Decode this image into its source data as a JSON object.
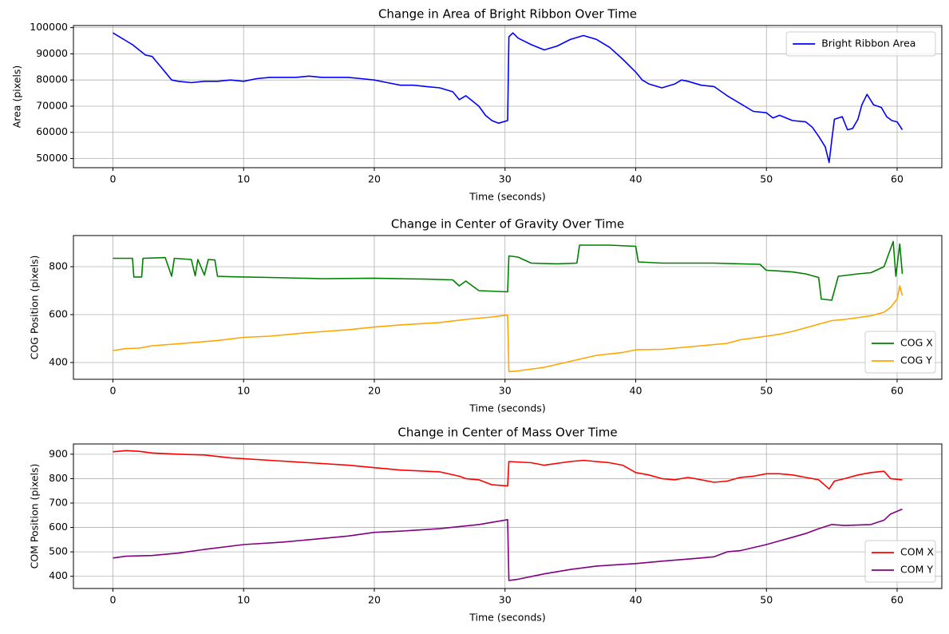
{
  "chart_data": [
    {
      "type": "line",
      "title": "Change in Area of Bright Ribbon Over Time",
      "xlabel": "Time (seconds)",
      "ylabel": "Area (pixels)",
      "xlim": [
        -3.02,
        63.42
      ],
      "ylim": [
        46500,
        100800
      ],
      "xticks": [
        0,
        10,
        20,
        30,
        40,
        50,
        60
      ],
      "yticks": [
        50000,
        60000,
        70000,
        80000,
        90000,
        100000
      ],
      "grid": true,
      "legend": "upper right",
      "series": [
        {
          "name": "Bright Ribbon Area",
          "color": "#0000ff",
          "x": [
            0,
            0.5,
            1,
            1.5,
            2,
            2.5,
            3,
            3.5,
            4,
            4.5,
            5,
            6,
            7,
            8,
            9,
            10,
            11,
            12,
            13,
            14,
            15,
            16,
            17,
            18,
            19,
            20,
            21,
            22,
            23,
            24,
            25,
            26,
            26.5,
            27,
            27.5,
            28,
            28.5,
            29,
            29.5,
            30.2,
            30.3,
            30.6,
            31,
            32,
            33,
            34,
            35,
            36,
            37,
            38,
            39,
            40,
            40.5,
            41,
            42,
            43,
            43.5,
            44,
            45,
            46,
            47,
            48,
            49,
            50,
            50.5,
            51,
            52,
            53,
            53.5,
            54,
            54.5,
            54.8,
            55,
            55.2,
            55.8,
            56.2,
            56.6,
            57,
            57.3,
            57.7,
            58.2,
            58.8,
            59.2,
            59.6,
            60,
            60.4
          ],
          "values": [
            98000,
            96500,
            95000,
            93500,
            91500,
            89500,
            89000,
            86000,
            83000,
            80000,
            79500,
            79000,
            79500,
            79500,
            80000,
            79500,
            80500,
            81000,
            81000,
            81000,
            81500,
            81000,
            81000,
            81000,
            80500,
            80000,
            79000,
            78000,
            78000,
            77500,
            77000,
            75500,
            72500,
            74000,
            72000,
            70000,
            66500,
            64500,
            63500,
            64500,
            96500,
            98000,
            96000,
            93500,
            91500,
            93000,
            95500,
            97000,
            95500,
            92500,
            88000,
            83000,
            80000,
            78500,
            77000,
            78500,
            80000,
            79500,
            78000,
            77500,
            74000,
            71000,
            68000,
            67500,
            65500,
            66500,
            64500,
            64000,
            62000,
            58500,
            54500,
            48500,
            57000,
            65000,
            66000,
            61000,
            61500,
            65000,
            70500,
            74500,
            70500,
            69500,
            66000,
            64500,
            64000,
            61000
          ]
        }
      ]
    },
    {
      "type": "line",
      "title": "Change in Center of Gravity Over Time",
      "xlabel": "Time (seconds)",
      "ylabel": "COG Position (pixels)",
      "xlim": [
        -3.02,
        63.42
      ],
      "ylim": [
        330,
        930
      ],
      "xticks": [
        0,
        10,
        20,
        30,
        40,
        50,
        60
      ],
      "yticks": [
        400,
        600,
        800
      ],
      "grid": true,
      "legend": "lower right",
      "series": [
        {
          "name": "COG X",
          "color": "#008000",
          "x": [
            0,
            1.5,
            1.6,
            2.2,
            2.3,
            4,
            4.5,
            4.7,
            6,
            6.3,
            6.5,
            7,
            7.3,
            7.8,
            8,
            9,
            12,
            16,
            20,
            24,
            26,
            26.5,
            27,
            28,
            30.2,
            30.3,
            31,
            32,
            34,
            35.5,
            35.7,
            38,
            40,
            40.2,
            42,
            46,
            48,
            49.5,
            50,
            51,
            52,
            53,
            54,
            54.2,
            55,
            55.5,
            57,
            58,
            59,
            59.7,
            59.9,
            60.2,
            60.4
          ],
          "values": [
            835,
            835,
            757,
            757,
            835,
            838,
            760,
            835,
            830,
            762,
            830,
            765,
            830,
            828,
            760,
            758,
            755,
            750,
            752,
            748,
            745,
            720,
            740,
            700,
            695,
            845,
            840,
            815,
            812,
            815,
            890,
            890,
            885,
            820,
            815,
            815,
            812,
            810,
            785,
            782,
            778,
            770,
            755,
            665,
            660,
            760,
            770,
            775,
            800,
            905,
            760,
            895,
            770
          ]
        },
        {
          "name": "COG Y",
          "color": "#ffa500",
          "x": [
            0,
            1,
            2,
            3,
            5,
            8,
            10,
            12,
            15,
            18,
            20,
            22,
            25,
            27,
            29,
            30.2,
            30.3,
            31,
            33,
            35,
            37,
            39,
            40,
            42,
            45,
            47,
            48,
            50,
            51,
            52,
            53,
            54,
            55,
            56,
            58,
            59,
            59.5,
            60,
            60.2,
            60.4
          ],
          "values": [
            450,
            458,
            460,
            470,
            478,
            492,
            505,
            510,
            525,
            537,
            548,
            557,
            567,
            580,
            590,
            598,
            362,
            365,
            380,
            405,
            430,
            442,
            453,
            455,
            470,
            480,
            495,
            510,
            518,
            530,
            545,
            560,
            575,
            580,
            595,
            610,
            630,
            665,
            720,
            680
          ]
        }
      ]
    },
    {
      "type": "line",
      "title": "Change in Center of Mass Over Time",
      "xlabel": "Time (seconds)",
      "ylabel": "COM Position (pixels)",
      "xlim": [
        -3.02,
        63.42
      ],
      "ylim": [
        350,
        942
      ],
      "xticks": [
        0,
        10,
        20,
        30,
        40,
        50,
        60
      ],
      "yticks": [
        400,
        500,
        600,
        700,
        800,
        900
      ],
      "grid": true,
      "legend": "lower right",
      "series": [
        {
          "name": "COM X",
          "color": "#ff0000",
          "x": [
            0,
            1,
            2,
            3,
            5,
            7,
            9,
            12,
            15,
            18,
            20,
            22,
            25,
            26.5,
            27,
            28,
            29,
            30.2,
            30.3,
            32,
            33,
            35,
            36,
            38,
            39,
            40,
            41,
            42,
            43,
            44,
            45,
            46,
            47,
            48,
            49,
            50,
            51,
            52,
            53,
            54,
            54.8,
            55.2,
            56,
            57,
            58,
            59,
            59.5,
            60.4
          ],
          "values": [
            910,
            915,
            912,
            905,
            900,
            897,
            885,
            875,
            865,
            855,
            845,
            835,
            828,
            810,
            800,
            795,
            775,
            770,
            870,
            865,
            855,
            870,
            875,
            865,
            855,
            825,
            815,
            800,
            795,
            805,
            795,
            785,
            790,
            805,
            810,
            820,
            820,
            815,
            805,
            795,
            758,
            790,
            800,
            815,
            825,
            830,
            800,
            795
          ]
        },
        {
          "name": "COM Y",
          "color": "#800080",
          "x": [
            0,
            1,
            3,
            5,
            7,
            10,
            13,
            15,
            18,
            20,
            22,
            25,
            28,
            30.2,
            30.3,
            31,
            33,
            35,
            37,
            40,
            42,
            45,
            46,
            47,
            48,
            50,
            51,
            52,
            53,
            54,
            55,
            56,
            58,
            59,
            59.5,
            60.4
          ],
          "values": [
            475,
            482,
            485,
            495,
            510,
            530,
            540,
            550,
            565,
            580,
            585,
            595,
            612,
            632,
            383,
            388,
            410,
            428,
            442,
            452,
            462,
            475,
            480,
            500,
            505,
            530,
            545,
            560,
            575,
            595,
            612,
            608,
            612,
            630,
            655,
            675
          ]
        }
      ]
    }
  ]
}
